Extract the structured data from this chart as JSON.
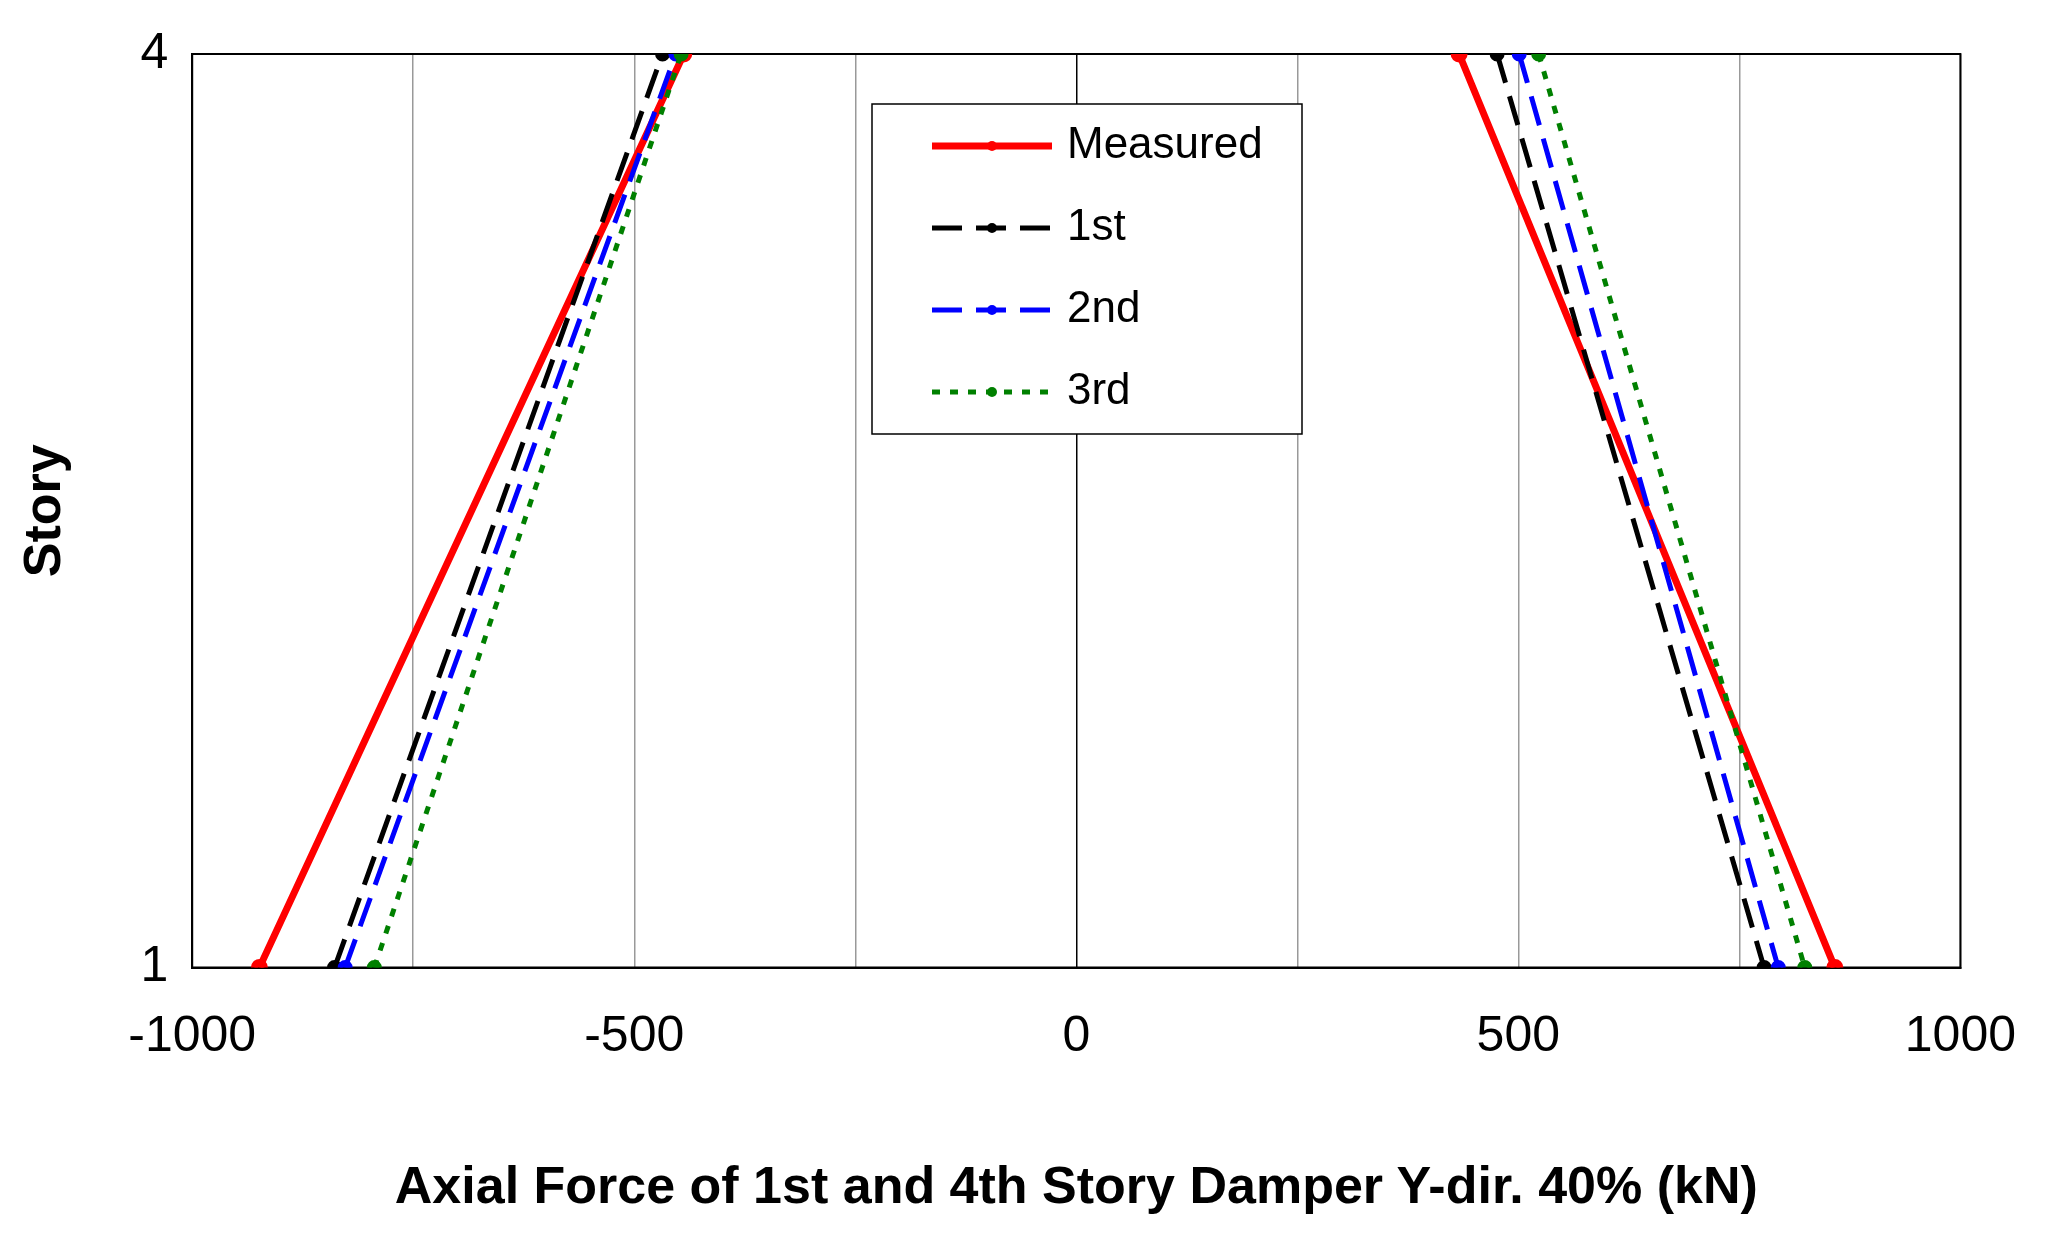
{
  "chart_data": {
    "type": "line",
    "xlabel": "Axial Force of 1st and 4th Story Damper Y-dir. 40% (kN)",
    "ylabel": "Story",
    "series": [
      {
        "name": "Measured",
        "color": "#ff0000",
        "line_style": "solid",
        "x": [
          -924,
          -444,
          0,
          433,
          858
        ],
        "values": [
          1,
          4,
          null,
          4,
          1
        ]
      },
      {
        "name": "1st",
        "color": "#000000",
        "line_style": "dashed",
        "x": [
          -839,
          -468,
          0,
          476,
          778
        ],
        "values": [
          1,
          4,
          null,
          4,
          1
        ]
      },
      {
        "name": "2nd",
        "color": "#0000ff",
        "line_style": "dashed",
        "x": [
          -827,
          -453,
          0,
          501,
          794
        ],
        "values": [
          1,
          4,
          null,
          4,
          1
        ]
      },
      {
        "name": "3rd",
        "color": "#008000",
        "line_style": "dotted",
        "x": [
          -794,
          -447,
          0,
          523,
          824
        ],
        "values": [
          1,
          4,
          null,
          4,
          1
        ]
      }
    ],
    "xlim": [
      -1000,
      1000
    ],
    "xticks": [
      -1000,
      {
        "value": -750,
        "label": null
      },
      -500,
      {
        "value": -250,
        "label": null
      },
      0,
      {
        "value": 250,
        "label": null
      },
      500,
      {
        "value": 750,
        "label": null
      },
      1000
    ],
    "ylim": [
      1,
      4
    ],
    "yticks": [
      1,
      4
    ],
    "grid": "x",
    "legend": "top",
    "marker": "circle"
  }
}
